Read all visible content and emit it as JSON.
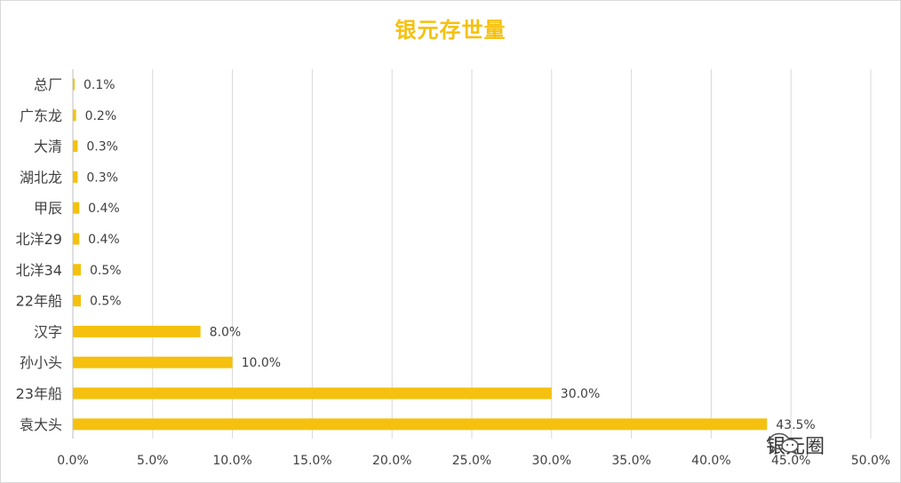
{
  "chart_data": {
    "type": "bar",
    "orientation": "horizontal",
    "title": "银元存世量",
    "categories": [
      "总厂",
      "广东龙",
      "大清",
      "湖北龙",
      "甲辰",
      "北洋29",
      "北洋34",
      "22年船",
      "汉字",
      "孙小头",
      "23年船",
      "袁大头"
    ],
    "values": [
      0.1,
      0.2,
      0.3,
      0.3,
      0.4,
      0.4,
      0.5,
      0.5,
      8.0,
      10.0,
      30.0,
      43.5
    ],
    "data_labels": [
      "0.1%",
      "0.2%",
      "0.3%",
      "0.3%",
      "0.4%",
      "0.4%",
      "0.5%",
      "0.5%",
      "8.0%",
      "10.0%",
      "30.0%",
      "43.5%"
    ],
    "xlim": [
      0,
      50
    ],
    "xticks": [
      "0.0%",
      "5.0%",
      "10.0%",
      "15.0%",
      "20.0%",
      "25.0%",
      "30.0%",
      "35.0%",
      "40.0%",
      "45.0%",
      "50.0%"
    ],
    "xlabel": "",
    "ylabel": "",
    "grid": true,
    "legend": "none",
    "bar_color": "#f5c10e",
    "title_color": "#f5c10e"
  },
  "watermark": {
    "text": "银元圈",
    "icon": "wechat-icon"
  }
}
